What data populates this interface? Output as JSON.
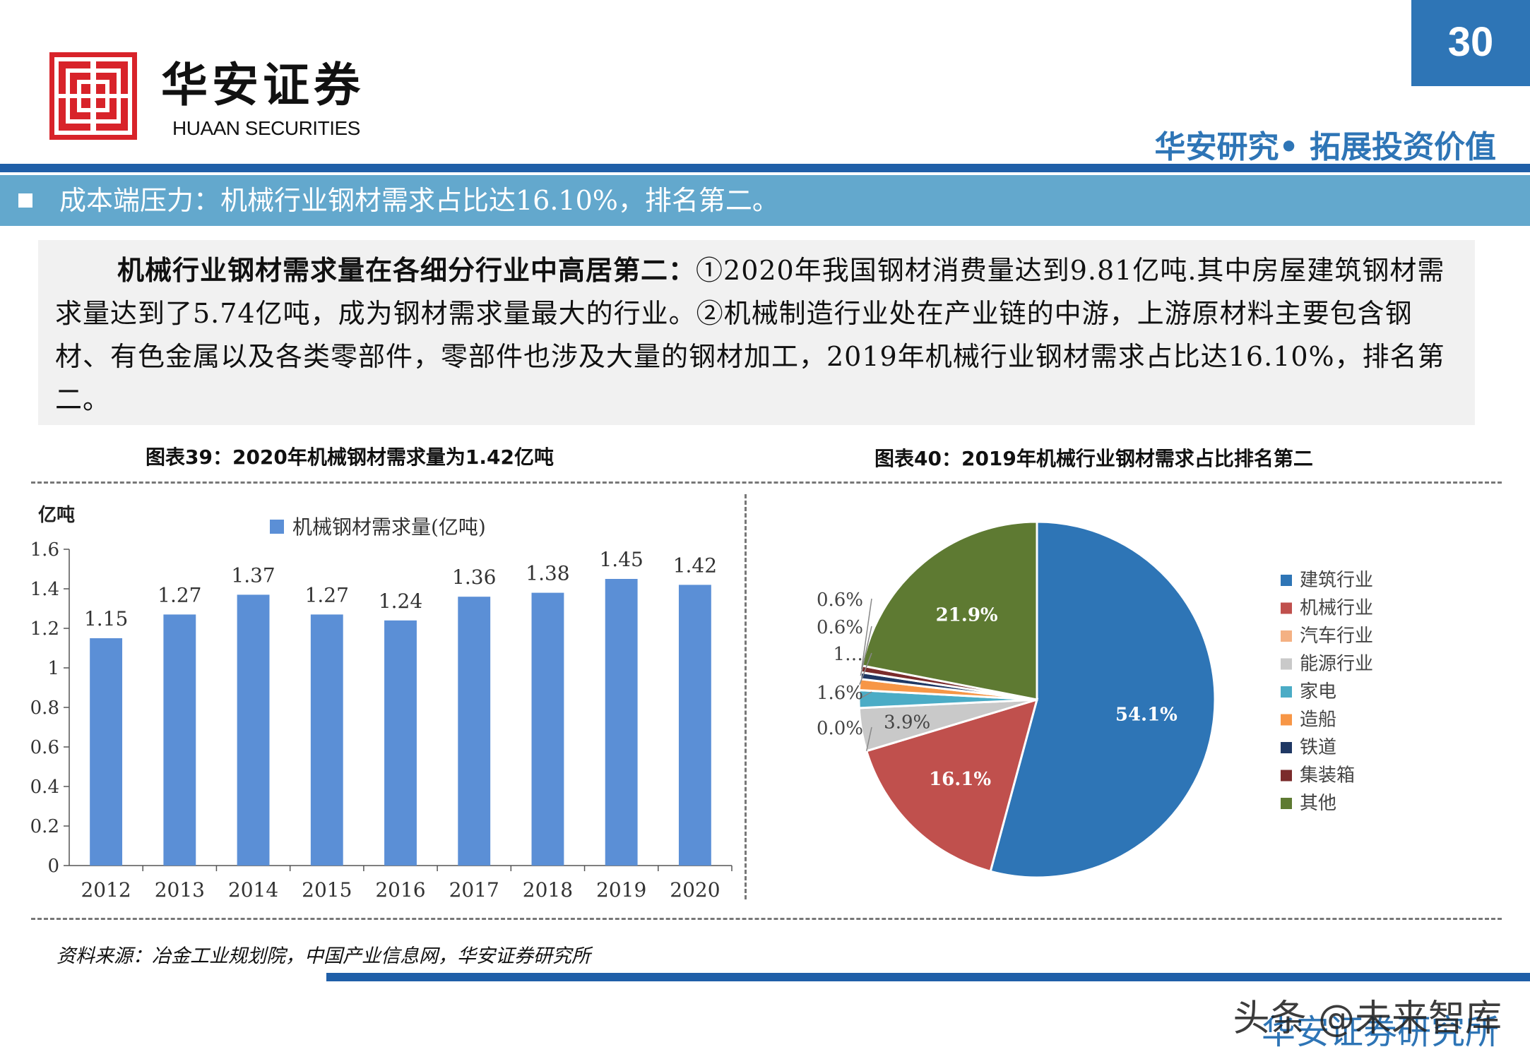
{
  "header": {
    "logo_cn": "华安证券",
    "logo_en": "HUAAN SECURITIES",
    "page_number": "30",
    "slogan": "华安研究• 拓展投资价值"
  },
  "title_bar": {
    "text": "成本端压力：机械行业钢材需求占比达16.10%，排名第二。"
  },
  "intro": {
    "lead": "机械行业钢材需求量在各细分行业中高居第二：",
    "body": "①2020年我国钢材消费量达到9.81亿吨.其中房屋建筑钢材需求量达到了5.74亿吨，成为钢材需求量最大的行业。②机械制造行业处在产业链的中游，上游原材料主要包含钢材、有色金属以及各类零部件，零部件也涉及大量的钢材加工，2019年机械行业钢材需求占比达16.10%，排名第二。"
  },
  "figures": {
    "fig39_title": "图表39：2020年机械钢材需求量为1.42亿吨",
    "fig40_title": "图表40：2019年机械行业钢材需求占比排名第二"
  },
  "chart_data": [
    {
      "type": "bar",
      "ylabel": "亿吨",
      "categories": [
        "2012",
        "2013",
        "2014",
        "2015",
        "2016",
        "2017",
        "2018",
        "2019",
        "2020"
      ],
      "series": [
        {
          "name": "机械钢材需求量(亿吨)",
          "values": [
            1.15,
            1.27,
            1.37,
            1.27,
            1.24,
            1.36,
            1.38,
            1.45,
            1.42
          ]
        }
      ],
      "data_labels": [
        "1.15",
        "1.27",
        "1.37",
        "1.27",
        "1.24",
        "1.36",
        "1.38",
        "1.45",
        "1.42"
      ],
      "ylim": [
        0,
        1.6
      ],
      "yticks": [
        "0",
        "0.2",
        "0.4",
        "0.6",
        "0.8",
        "1",
        "1.2",
        "1.4",
        "1.6"
      ],
      "legend_position": "top",
      "color": "#5b8fd6"
    },
    {
      "type": "pie",
      "slices": [
        {
          "name": "建筑行业",
          "value": 54.1,
          "label": "54.1%",
          "color": "#2e75b6"
        },
        {
          "name": "机械行业",
          "value": 16.1,
          "label": "16.1%",
          "color": "#c0504d"
        },
        {
          "name": "汽车行业",
          "value": 0.0,
          "label": "0.0%",
          "color": "#f4b183"
        },
        {
          "name": "能源行业",
          "value": 3.9,
          "label": "3.9%",
          "color": "#c9c9c9"
        },
        {
          "name": "家电",
          "value": 1.6,
          "label": "1.6%",
          "color": "#4bacc6"
        },
        {
          "name": "造船",
          "value": 1.0,
          "label": "1…",
          "color": "#f79646"
        },
        {
          "name": "铁道",
          "value": 0.6,
          "label": "0.6%",
          "color": "#1f3864"
        },
        {
          "name": "集装箱",
          "value": 0.6,
          "label": "0.6%",
          "color": "#7b2c2c"
        },
        {
          "name": "其他",
          "value": 21.9,
          "label": "21.9%",
          "color": "#5e7a32"
        }
      ],
      "legend_position": "right"
    }
  ],
  "footer": {
    "source": "资料来源：冶金工业规划院，中国产业信息网，华安证券研究所",
    "sub_brand": "华安证券研究所",
    "watermark": "头条 @未来智库"
  }
}
